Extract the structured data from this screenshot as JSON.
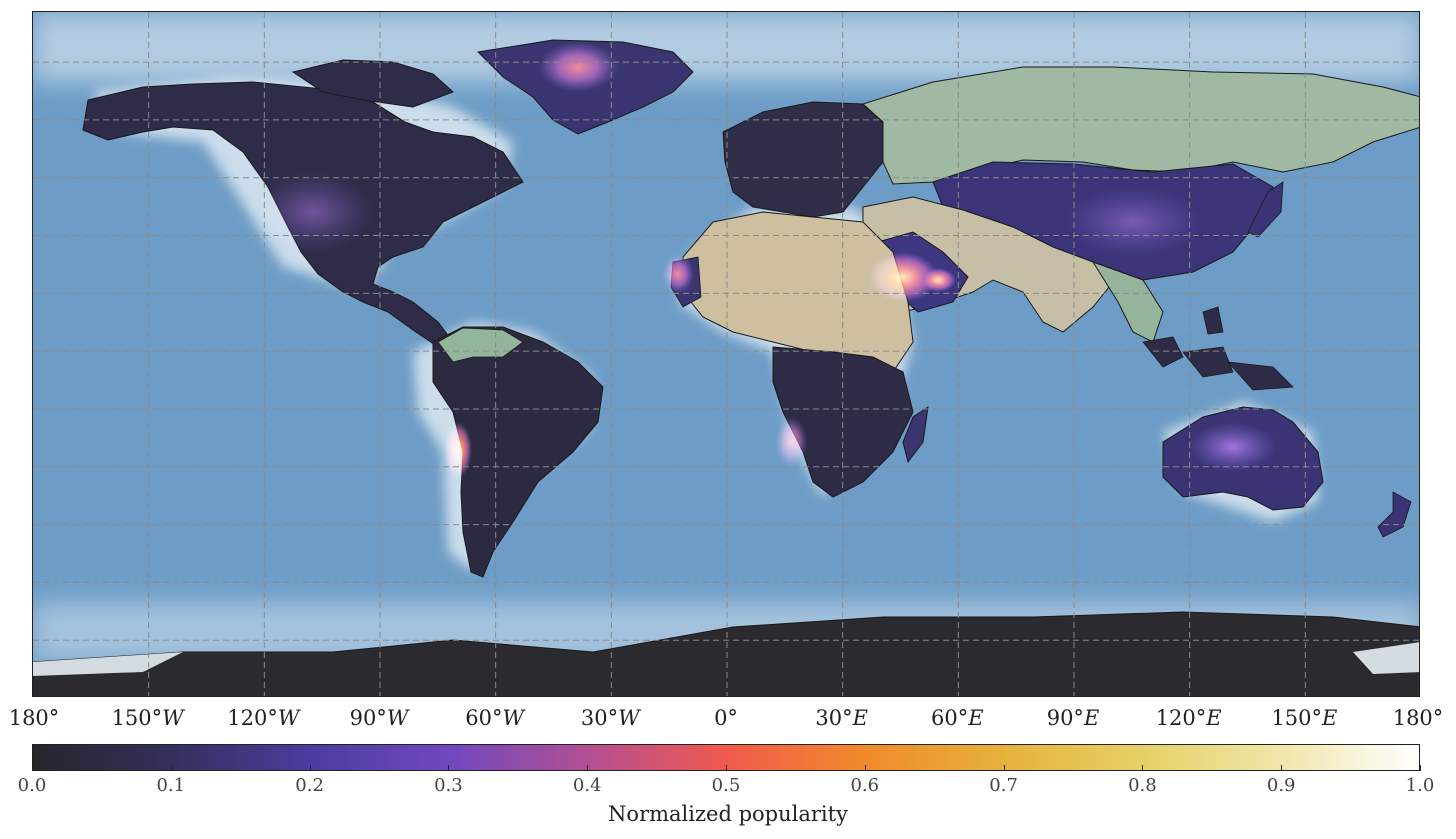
{
  "map": {
    "projection": "equirectangular",
    "graticule_spacing_deg": 30,
    "ocean_color": "#6d9cc6",
    "land_base_color": "#cdbfa0",
    "forest_color": "#9bb9a0",
    "ice_color": "#e8eff5",
    "antarctica_color": "#2a2a2f",
    "longitude_labels": [
      {
        "num": "180°",
        "dir": ""
      },
      {
        "num": "150°",
        "dir": "W"
      },
      {
        "num": "120°",
        "dir": "W"
      },
      {
        "num": "90°",
        "dir": "W"
      },
      {
        "num": "60°",
        "dir": "W"
      },
      {
        "num": "30°",
        "dir": "W"
      },
      {
        "num": "0°",
        "dir": ""
      },
      {
        "num": "30°",
        "dir": "E"
      },
      {
        "num": "60°",
        "dir": "E"
      },
      {
        "num": "90°",
        "dir": "E"
      },
      {
        "num": "120°",
        "dir": "E"
      },
      {
        "num": "150°",
        "dir": "E"
      },
      {
        "num": "180°",
        "dir": ""
      }
    ],
    "hotspots": [
      {
        "name": "Atacama / northern Chile",
        "lon": -69.5,
        "lat": -23.5,
        "value": 0.75
      },
      {
        "name": "Arabian Peninsula",
        "lon": 46,
        "lat": 22,
        "value": 0.55
      },
      {
        "name": "Oman / UAE",
        "lon": 55,
        "lat": 21,
        "value": 0.5
      },
      {
        "name": "Western Sahara / Mauritania",
        "lon": -14,
        "lat": 22,
        "value": 0.45
      },
      {
        "name": "Namibia coast",
        "lon": 14,
        "lat": -19,
        "value": 0.45
      },
      {
        "name": "Greenland interior",
        "lon": -40,
        "lat": 72,
        "value": 0.45
      },
      {
        "name": "Central Australia",
        "lon": 128,
        "lat": -26,
        "value": 0.25
      }
    ]
  },
  "colorbar": {
    "colormap": "CMRmap",
    "stops": [
      {
        "v": 0.0,
        "color": "#26252b"
      },
      {
        "v": 0.1,
        "color": "#33305c"
      },
      {
        "v": 0.2,
        "color": "#4c3c9e"
      },
      {
        "v": 0.3,
        "color": "#7048bf"
      },
      {
        "v": 0.4,
        "color": "#b24f93"
      },
      {
        "v": 0.5,
        "color": "#f05a4c"
      },
      {
        "v": 0.6,
        "color": "#f08a2c"
      },
      {
        "v": 0.7,
        "color": "#e6b23a"
      },
      {
        "v": 0.8,
        "color": "#e6d066"
      },
      {
        "v": 0.9,
        "color": "#f0e6aa"
      },
      {
        "v": 1.0,
        "color": "#ffffff"
      }
    ],
    "ticks": [
      "0.0",
      "0.1",
      "0.2",
      "0.3",
      "0.4",
      "0.5",
      "0.6",
      "0.7",
      "0.8",
      "0.9",
      "1.0"
    ],
    "label": "Normalized popularity",
    "range": [
      0,
      1
    ]
  }
}
